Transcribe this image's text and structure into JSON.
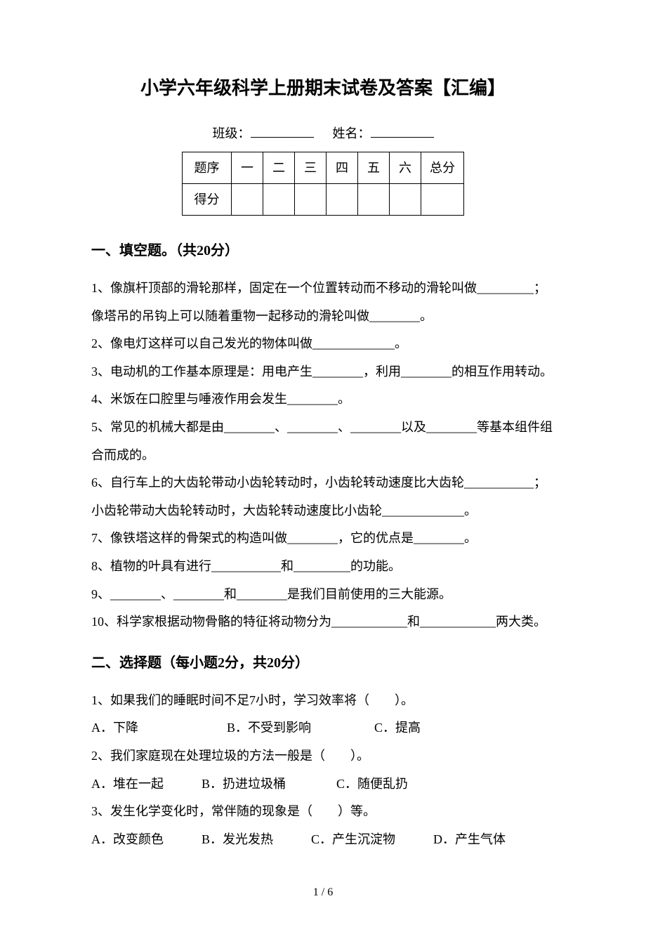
{
  "title": "小学六年级科学上册期末试卷及答案【汇编】",
  "meta": {
    "class_label": "班级：",
    "name_label": "姓名："
  },
  "score_table": {
    "row1": [
      "题序",
      "一",
      "二",
      "三",
      "四",
      "五",
      "六",
      "总分"
    ],
    "row2_label": "得分"
  },
  "section1": {
    "heading": "一、填空题。（共20分）",
    "q1": "1、像旗杆顶部的滑轮那样，固定在一个位置转动而不移动的滑轮叫做_________；像塔吊的吊钩上可以随着重物一起移动的滑轮叫做________。",
    "q2": "2、像电灯这样可以自己发光的物体叫做_____________。",
    "q3": "3、电动机的工作基本原理是：用电产生________，利用________的相互作用转动。",
    "q4": "4、米饭在口腔里与唾液作用会发生________。",
    "q5": "5、常见的机械大都是由________、________、________以及________等基本组件组合而成的。",
    "q6": "6、自行车上的大齿轮带动小齿轮转动时，小齿轮转动速度比大齿轮___________；小齿轮带动大齿轮转动时，大齿轮转动速度比小齿轮_____________。",
    "q7": "7、像铁塔这样的骨架式的构造叫做________，它的优点是________。",
    "q8": "8、植物的叶具有进行___________和_________的功能。",
    "q9": "9、________、________和________是我们目前使用的三大能源。",
    "q10": "10、科学家根据动物骨骼的特征将动物分为____________和____________两大类。"
  },
  "section2": {
    "heading": "二、选择题（每小题2分，共20分）",
    "q1": "1、如果我们的睡眠时间不足7小时，学习效率将（　　）。",
    "q1_opts": "A．下降　　　　　　　B．不受到影响　　　　　C．提高",
    "q2": "2、我们家庭现在处理垃圾的方法一般是（　　）。",
    "q2_opts": "A．堆在一起　　　B．扔进垃圾桶　　　　C．随便乱扔",
    "q3": "3、发生化学变化时，常伴随的现象是（　　）等。",
    "q3_opts": "A．改变颜色　　　B．发光发热　　　C．产生沉淀物　　　D．产生气体"
  },
  "footer": "1 / 6"
}
